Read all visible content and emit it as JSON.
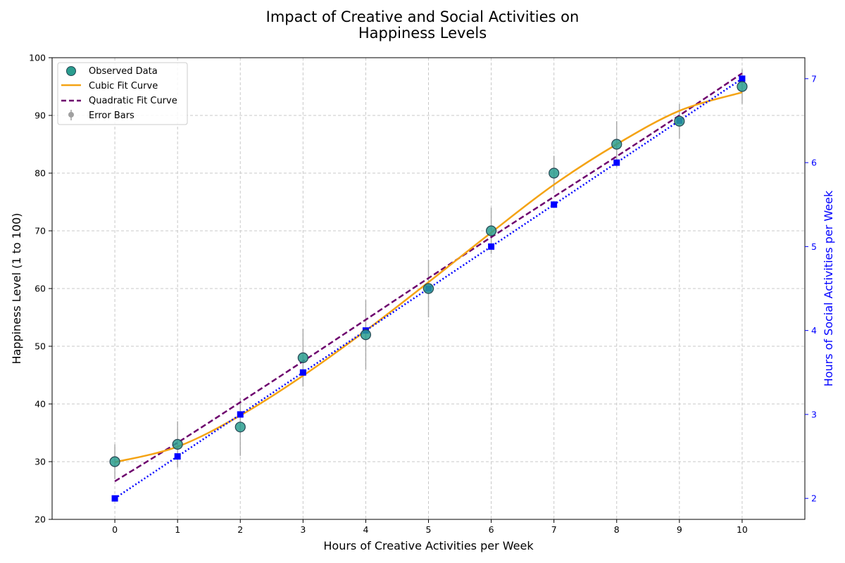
{
  "chart_data": {
    "type": "scatter",
    "title_lines": [
      "Impact of Creative and Social Activities on",
      "Happiness Levels"
    ],
    "xlabel": "Hours of Creative Activities per Week",
    "ylabel": "Happiness Level (1 to 100)",
    "y2label": "Hours of Social Activities per Week",
    "xlim": [
      -1,
      11
    ],
    "ylim": [
      20,
      100
    ],
    "y2lim": [
      1.75,
      7.25
    ],
    "x_ticks": [
      0,
      1,
      2,
      3,
      4,
      5,
      6,
      7,
      8,
      9,
      10
    ],
    "y_ticks": [
      20,
      30,
      40,
      50,
      60,
      70,
      80,
      90,
      100
    ],
    "y2_ticks": [
      2,
      3,
      4,
      5,
      6,
      7
    ],
    "grid": true,
    "legend_position": "top-left",
    "legend": {
      "observed": "Observed Data",
      "cubic": "Cubic Fit Curve",
      "quadratic": "Quadratic Fit Curve",
      "error": "Error Bars"
    },
    "observed": {
      "x": [
        0,
        1,
        2,
        3,
        4,
        5,
        6,
        7,
        8,
        9,
        10
      ],
      "y": [
        30,
        33,
        36,
        48,
        52,
        60,
        70,
        80,
        85,
        89,
        95
      ],
      "error": [
        3,
        4,
        5,
        5,
        6,
        5,
        4,
        3,
        4,
        3,
        3
      ]
    },
    "cubic_fit": {
      "x": [
        0,
        1,
        2,
        3,
        4,
        5,
        6,
        7,
        8,
        9,
        10
      ],
      "y": [
        29.9,
        32.6,
        38.0,
        44.9,
        52.7,
        61.1,
        69.7,
        78.0,
        85.0,
        90.8,
        94.0
      ]
    },
    "quadratic_fit": {
      "x": [
        0,
        1,
        2,
        3,
        4,
        5,
        6,
        7,
        8,
        9,
        10
      ],
      "y": [
        26.6,
        33.3,
        40.3,
        47.4,
        54.6,
        61.8,
        68.9,
        75.9,
        82.9,
        90.0,
        97.3
      ]
    },
    "social": {
      "x": [
        0,
        1,
        2,
        3,
        4,
        5,
        6,
        7,
        8,
        9,
        10
      ],
      "y": [
        2.0,
        2.5,
        3.0,
        3.5,
        4.0,
        4.5,
        5.0,
        5.5,
        6.0,
        6.5,
        7.0
      ]
    },
    "colors": {
      "observed_fill": "#2a9d8f",
      "observed_edge": "#264653",
      "cubic": "#f4a314",
      "quadratic": "#6d006d",
      "social": "#0000ff",
      "error": "#a0a0a0",
      "grid": "#c8c8c8",
      "y2_axis": "#0000ff"
    }
  }
}
